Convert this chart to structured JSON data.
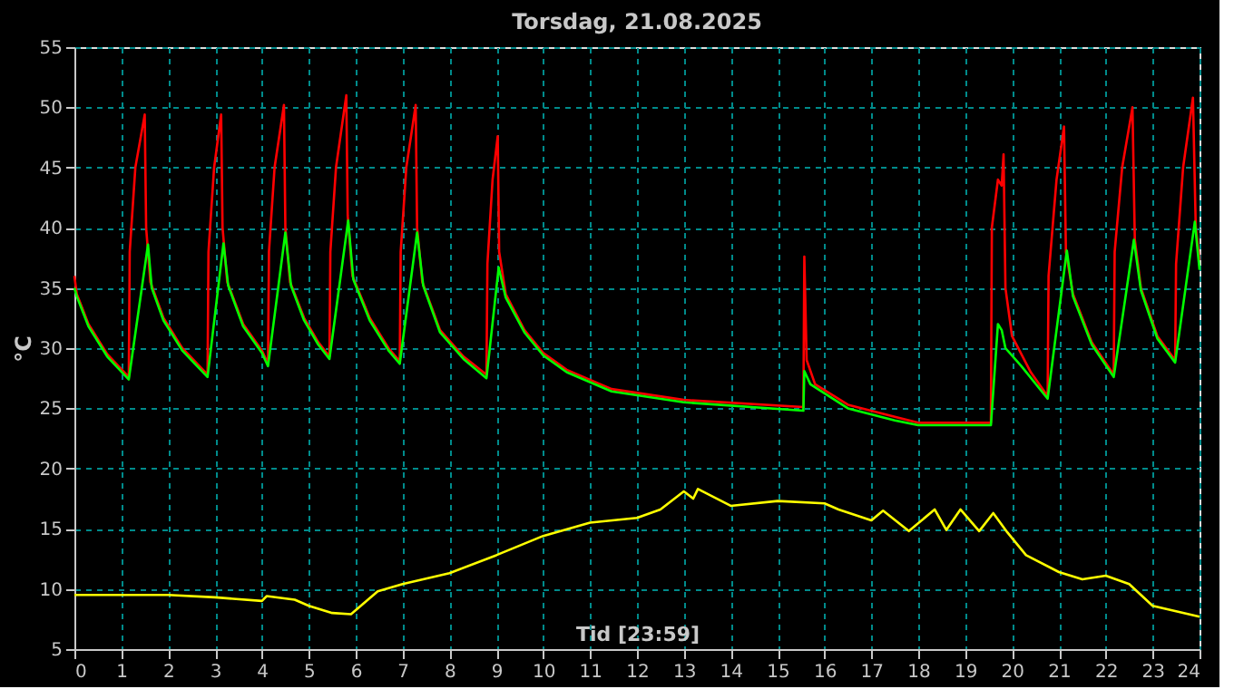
{
  "chart_data": {
    "type": "line",
    "title": "Torsdag, 21.08.2025",
    "xlabel": "Tid [23:59]",
    "ylabel": "°C",
    "xlim": [
      0,
      24
    ],
    "xticks": [
      0,
      1,
      2,
      3,
      4,
      5,
      6,
      7,
      8,
      9,
      10,
      11,
      12,
      13,
      14,
      15,
      16,
      17,
      18,
      19,
      20,
      21,
      22,
      23,
      24
    ],
    "ylim": [
      5,
      55
    ],
    "yticks": [
      5,
      10,
      15,
      20,
      25,
      30,
      35,
      40,
      45,
      50,
      55
    ],
    "grid": true,
    "legend": false,
    "marker": "none",
    "line_style": "solid",
    "series": [
      {
        "color": "#ff0000",
        "x": [
          0,
          0.05,
          0.3,
          0.7,
          1.16,
          1.18,
          1.3,
          1.5,
          1.53,
          1.62,
          1.9,
          2.3,
          2.84,
          2.86,
          2.98,
          3.13,
          3.16,
          3.26,
          3.6,
          4.0,
          4.13,
          4.15,
          4.27,
          4.47,
          4.5,
          4.6,
          4.9,
          5.2,
          5.44,
          5.46,
          5.58,
          5.8,
          5.83,
          5.93,
          6.3,
          6.7,
          6.94,
          6.96,
          7.08,
          7.28,
          7.31,
          7.42,
          7.8,
          8.3,
          8.79,
          8.81,
          8.92,
          9.03,
          9.06,
          9.2,
          9.6,
          10,
          10.5,
          11.46,
          13,
          15.55,
          15.57,
          15.62,
          15.8,
          16.5,
          17.5,
          18,
          19.55,
          19.57,
          19.7,
          19.78,
          19.82,
          19.86,
          20,
          20.4,
          20.76,
          20.78,
          20.95,
          21.11,
          21.15,
          21.3,
          21.7,
          22.17,
          22.19,
          22.35,
          22.57,
          22.62,
          22.75,
          23.1,
          23.48,
          23.5,
          23.65,
          23.86,
          23.92,
          24
        ],
        "values": [
          36,
          34.5,
          32,
          29.5,
          27.6,
          38,
          45,
          49.4,
          40,
          35.5,
          32.5,
          30,
          27.8,
          38,
          45,
          49.4,
          40,
          35.5,
          32,
          29.8,
          28.7,
          38,
          45,
          50.2,
          40,
          35.5,
          32.5,
          30.5,
          29.3,
          38,
          45,
          51.0,
          41,
          36,
          32.5,
          30,
          28.9,
          38,
          45,
          50.2,
          40,
          35.5,
          31.5,
          29.3,
          27.8,
          37,
          44,
          47.6,
          38,
          34.5,
          31.5,
          29.6,
          28.2,
          26.6,
          25.7,
          25.1,
          37.6,
          29,
          27,
          25.3,
          24.3,
          23.8,
          23.8,
          40,
          44,
          43.5,
          46.1,
          35,
          31,
          28,
          26.0,
          36,
          44,
          48.4,
          38,
          34.5,
          30.5,
          27.8,
          38,
          45,
          50.0,
          39,
          35,
          31,
          29.0,
          37,
          45,
          50.8,
          40,
          37.3
        ]
      },
      {
        "color": "#00ff00",
        "x": [
          0,
          0.05,
          0.3,
          0.7,
          1.16,
          1.57,
          1.65,
          1.9,
          2.3,
          2.84,
          3.18,
          3.28,
          3.6,
          4.0,
          4.13,
          4.5,
          4.62,
          4.9,
          5.2,
          5.44,
          5.84,
          5.95,
          6.3,
          6.7,
          6.94,
          7.31,
          7.44,
          7.8,
          8.3,
          8.79,
          9.05,
          9.2,
          9.6,
          10,
          10.5,
          11.46,
          13,
          15.55,
          15.57,
          15.7,
          16.5,
          17.5,
          18,
          19.55,
          19.7,
          19.78,
          19.86,
          20.2,
          20.76,
          21.17,
          21.3,
          21.7,
          22.17,
          22.6,
          22.75,
          23.1,
          23.48,
          23.9,
          24
        ],
        "values": [
          35,
          34.3,
          31.8,
          29.3,
          27.4,
          38.6,
          35,
          32.3,
          29.8,
          27.6,
          38.7,
          35.2,
          31.8,
          29.6,
          28.5,
          39.6,
          35.2,
          32.3,
          30.3,
          29.1,
          40.6,
          35.7,
          32.3,
          29.8,
          28.7,
          39.6,
          35.2,
          31.3,
          29.1,
          27.5,
          36.7,
          34.2,
          31.3,
          29.4,
          28,
          26.4,
          25.5,
          24.8,
          28.1,
          27,
          25,
          24,
          23.6,
          23.6,
          32,
          31.5,
          30,
          28.5,
          25.8,
          38.1,
          34.3,
          30.3,
          27.6,
          39,
          34.8,
          30.8,
          28.8,
          40.5,
          36.5
        ]
      },
      {
        "color": "#ffff00",
        "x": [
          0,
          2,
          3,
          4,
          4.1,
          4.7,
          5,
          5.5,
          5.9,
          6.47,
          7,
          8,
          9,
          10,
          11,
          12,
          12.5,
          13,
          13.2,
          13.3,
          14,
          15,
          16,
          16.3,
          17,
          17.25,
          17.8,
          18.35,
          18.6,
          18.9,
          19.3,
          19.6,
          19.9,
          20.3,
          21,
          21.5,
          22,
          22.5,
          23,
          24
        ],
        "values": [
          9.5,
          9.5,
          9.3,
          9.0,
          9.4,
          9.1,
          8.6,
          8.0,
          7.9,
          9.8,
          10.4,
          11.3,
          12.8,
          14.4,
          15.5,
          15.9,
          16.6,
          18.1,
          17.5,
          18.3,
          16.9,
          17.3,
          17.1,
          16.6,
          15.7,
          16.5,
          14.8,
          16.6,
          14.9,
          16.6,
          14.8,
          16.3,
          14.7,
          12.8,
          11.4,
          10.8,
          11.1,
          10.4,
          8.6,
          7.7
        ]
      }
    ]
  }
}
